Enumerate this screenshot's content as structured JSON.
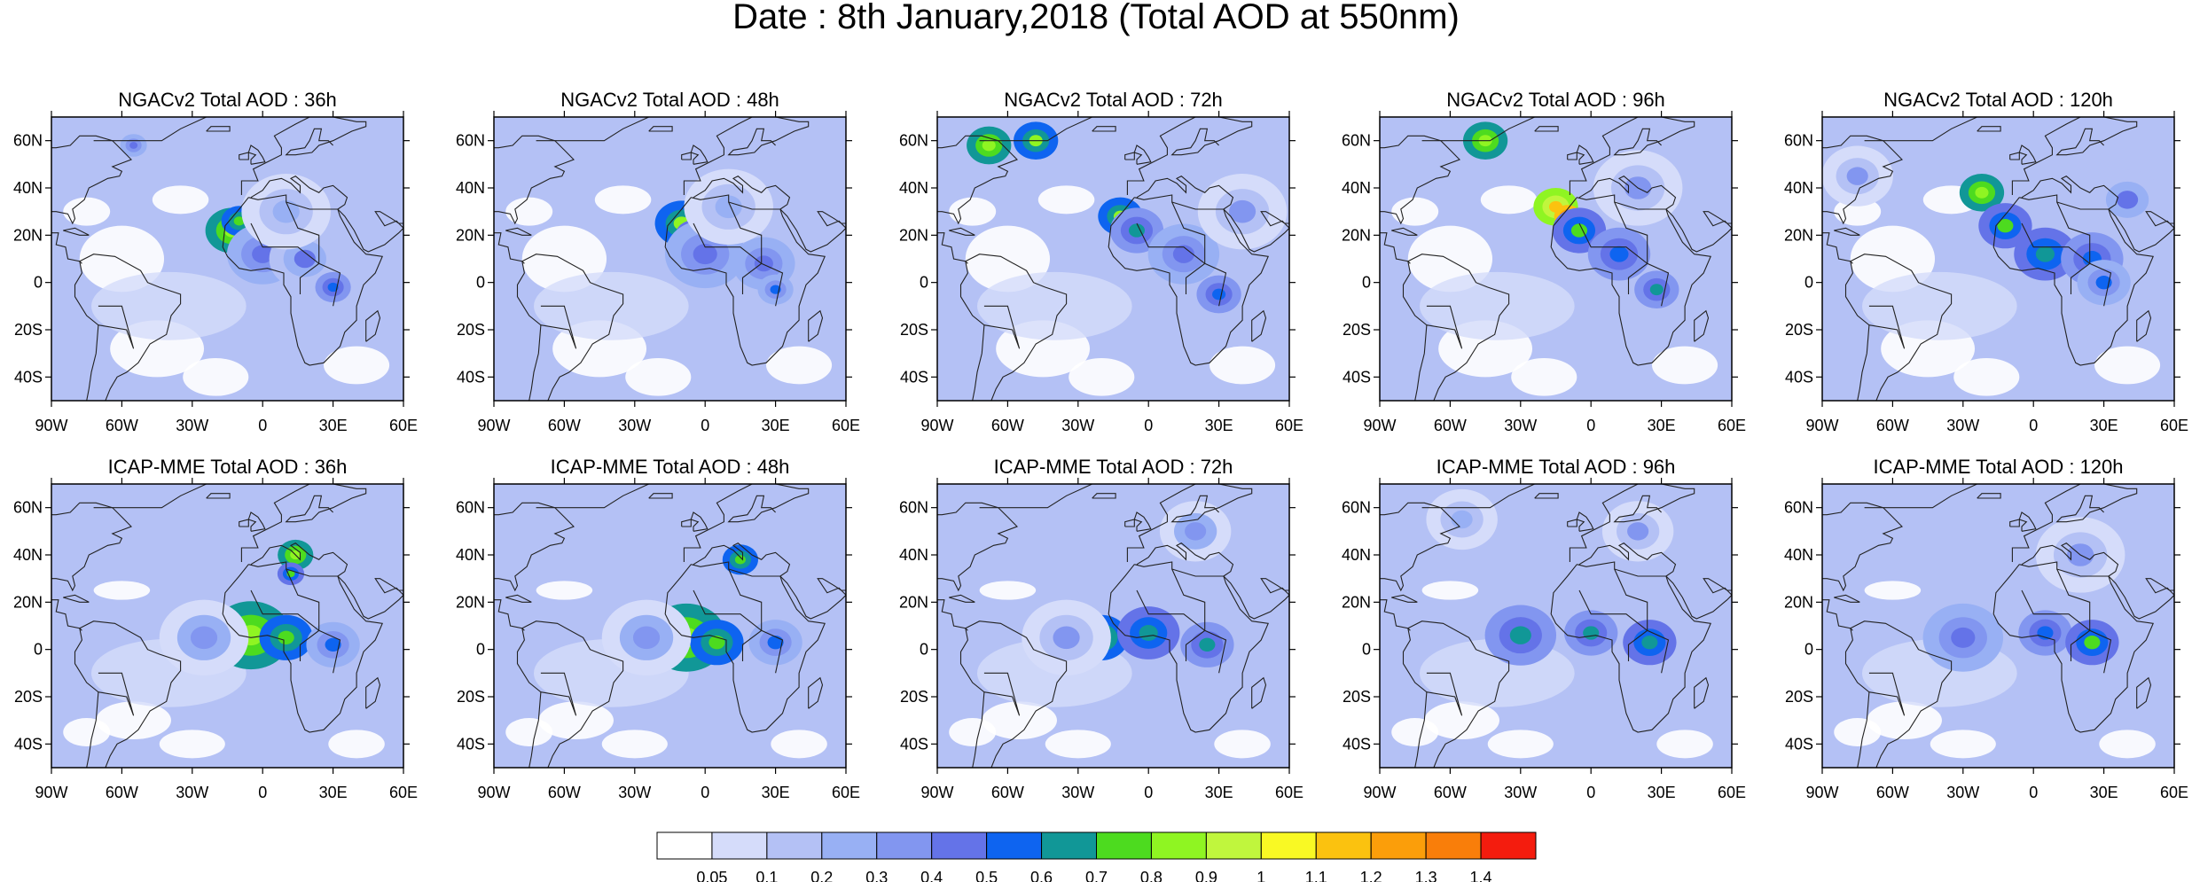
{
  "title": "Date : 8th January,2018 (Total AOD at 550nm)",
  "rows": [
    {
      "model": "NGACv2",
      "panels": [
        {
          "title": "NGACv2 Total AOD : 36h",
          "blobs": [
            {
              "lon": -13,
              "lat": 22,
              "r": 6,
              "aod": 0.85
            },
            {
              "lon": -10,
              "lat": 26,
              "r": 4,
              "aod": 0.75
            },
            {
              "lon": 0,
              "lat": 12,
              "r": 8,
              "aod": 0.45
            },
            {
              "lon": 18,
              "lat": 10,
              "r": 8,
              "aod": 0.4
            },
            {
              "lon": 30,
              "lat": -2,
              "r": 4,
              "aod": 0.55
            },
            {
              "lon": -55,
              "lat": 58,
              "r": 3,
              "aod": 0.45
            },
            {
              "lon": 10,
              "lat": 30,
              "r": 10,
              "aod": 0.25
            }
          ]
        },
        {
          "title": "NGACv2 Total AOD : 48h",
          "blobs": [
            {
              "lon": -10,
              "lat": 25,
              "r": 6,
              "aod": 0.8
            },
            {
              "lon": -5,
              "lat": 20,
              "r": 4,
              "aod": 0.7
            },
            {
              "lon": 0,
              "lat": 12,
              "r": 9,
              "aod": 0.45
            },
            {
              "lon": 25,
              "lat": 8,
              "r": 7,
              "aod": 0.45
            },
            {
              "lon": 30,
              "lat": -3,
              "r": 4,
              "aod": 0.5
            },
            {
              "lon": 10,
              "lat": 32,
              "r": 10,
              "aod": 0.25
            }
          ]
        },
        {
          "title": "NGACv2 Total AOD : 72h",
          "blobs": [
            {
              "lon": -68,
              "lat": 58,
              "r": 5,
              "aod": 0.85
            },
            {
              "lon": -48,
              "lat": 60,
              "r": 5,
              "aod": 0.8
            },
            {
              "lon": -12,
              "lat": 28,
              "r": 5,
              "aod": 0.8
            },
            {
              "lon": -5,
              "lat": 22,
              "r": 6,
              "aod": 0.6
            },
            {
              "lon": 15,
              "lat": 12,
              "r": 8,
              "aod": 0.45
            },
            {
              "lon": 30,
              "lat": -5,
              "r": 5,
              "aod": 0.55
            },
            {
              "lon": 40,
              "lat": 30,
              "r": 10,
              "aod": 0.3
            }
          ]
        },
        {
          "title": "NGACv2 Total AOD : 96h",
          "blobs": [
            {
              "lon": -45,
              "lat": 60,
              "r": 5,
              "aod": 0.85
            },
            {
              "lon": -15,
              "lat": 32,
              "r": 5,
              "aod": 1.1
            },
            {
              "lon": -10,
              "lat": 28,
              "r": 3,
              "aod": 1.35
            },
            {
              "lon": -5,
              "lat": 22,
              "r": 6,
              "aod": 0.7
            },
            {
              "lon": 12,
              "lat": 12,
              "r": 7,
              "aod": 0.55
            },
            {
              "lon": 28,
              "lat": -3,
              "r": 5,
              "aod": 0.6
            },
            {
              "lon": 20,
              "lat": 40,
              "r": 10,
              "aod": 0.3
            }
          ]
        },
        {
          "title": "NGACv2 Total AOD : 120h",
          "blobs": [
            {
              "lon": -22,
              "lat": 38,
              "r": 5,
              "aod": 0.85
            },
            {
              "lon": -12,
              "lat": 24,
              "r": 6,
              "aod": 0.7
            },
            {
              "lon": 5,
              "lat": 12,
              "r": 7,
              "aod": 0.65
            },
            {
              "lon": 25,
              "lat": 10,
              "r": 7,
              "aod": 0.55
            },
            {
              "lon": 30,
              "lat": 0,
              "r": 6,
              "aod": 0.5
            },
            {
              "lon": 40,
              "lat": 35,
              "r": 8,
              "aod": 0.4
            },
            {
              "lon": -75,
              "lat": 45,
              "r": 8,
              "aod": 0.3
            }
          ]
        }
      ]
    },
    {
      "model": "ICAP-MME",
      "panels": [
        {
          "title": "ICAP-MME Total AOD : 36h",
          "blobs": [
            {
              "lon": -5,
              "lat": 6,
              "r": 9,
              "aod": 0.85
            },
            {
              "lon": 10,
              "lat": 5,
              "r": 6,
              "aod": 0.75
            },
            {
              "lon": 14,
              "lat": 40,
              "r": 4,
              "aod": 0.85
            },
            {
              "lon": 12,
              "lat": 32,
              "r": 3,
              "aod": 0.7
            },
            {
              "lon": 30,
              "lat": 2,
              "r": 6,
              "aod": 0.5
            },
            {
              "lon": -25,
              "lat": 5,
              "r": 10,
              "aod": 0.35
            }
          ]
        },
        {
          "title": "ICAP-MME Total AOD : 48h",
          "blobs": [
            {
              "lon": -8,
              "lat": 5,
              "r": 9,
              "aod": 0.85
            },
            {
              "lon": 5,
              "lat": 3,
              "r": 6,
              "aod": 0.75
            },
            {
              "lon": 15,
              "lat": 38,
              "r": 4,
              "aod": 0.75
            },
            {
              "lon": 30,
              "lat": 3,
              "r": 6,
              "aod": 0.5
            },
            {
              "lon": -25,
              "lat": 5,
              "r": 10,
              "aod": 0.35
            }
          ]
        },
        {
          "title": "ICAP-MME Total AOD : 72h",
          "blobs": [
            {
              "lon": -20,
              "lat": 5,
              "r": 6,
              "aod": 0.75
            },
            {
              "lon": 0,
              "lat": 7,
              "r": 7,
              "aod": 0.65
            },
            {
              "lon": 25,
              "lat": 2,
              "r": 6,
              "aod": 0.6
            },
            {
              "lon": 20,
              "lat": 50,
              "r": 8,
              "aod": 0.35
            },
            {
              "lon": -35,
              "lat": 5,
              "r": 10,
              "aod": 0.3
            }
          ]
        },
        {
          "title": "ICAP-MME Total AOD : 96h",
          "blobs": [
            {
              "lon": -30,
              "lat": 6,
              "r": 8,
              "aod": 0.6
            },
            {
              "lon": 0,
              "lat": 7,
              "r": 6,
              "aod": 0.6
            },
            {
              "lon": 25,
              "lat": 3,
              "r": 6,
              "aod": 0.65
            },
            {
              "lon": -55,
              "lat": 55,
              "r": 8,
              "aod": 0.25
            },
            {
              "lon": 20,
              "lat": 50,
              "r": 8,
              "aod": 0.3
            }
          ]
        },
        {
          "title": "ICAP-MME Total AOD : 120h",
          "blobs": [
            {
              "lon": -30,
              "lat": 5,
              "r": 9,
              "aod": 0.45
            },
            {
              "lon": 5,
              "lat": 7,
              "r": 6,
              "aod": 0.55
            },
            {
              "lon": 25,
              "lat": 3,
              "r": 6,
              "aod": 0.7
            },
            {
              "lon": 20,
              "lat": 40,
              "r": 10,
              "aod": 0.3
            }
          ]
        }
      ]
    }
  ],
  "lon_ticks": [
    "90W",
    "60W",
    "30W",
    "0",
    "30E",
    "60E"
  ],
  "lat_ticks": [
    "60N",
    "40N",
    "20N",
    "0",
    "20S",
    "40S"
  ],
  "lon_range": [
    -90,
    60
  ],
  "lat_range": [
    -50,
    70
  ],
  "colorbar": {
    "colors": [
      "#ffffff",
      "#d5dcfa",
      "#b4c1f5",
      "#98b0f4",
      "#8296f0",
      "#6473e8",
      "#0e64f0",
      "#119797",
      "#4ddb1f",
      "#8ff522",
      "#c0f63d",
      "#f9f924",
      "#fbc20f",
      "#fb9e0a",
      "#f97e0a",
      "#f41c0e"
    ],
    "labels": [
      "0.05",
      "0.1",
      "0.2",
      "0.3",
      "0.4",
      "0.5",
      "0.6",
      "0.7",
      "0.8",
      "0.9",
      "1",
      "1.1",
      "1.2",
      "1.3",
      "1.4"
    ],
    "levels": [
      0.05,
      0.1,
      0.2,
      0.3,
      0.4,
      0.5,
      0.6,
      0.7,
      0.8,
      0.9,
      1.0,
      1.1,
      1.2,
      1.3,
      1.4
    ]
  }
}
